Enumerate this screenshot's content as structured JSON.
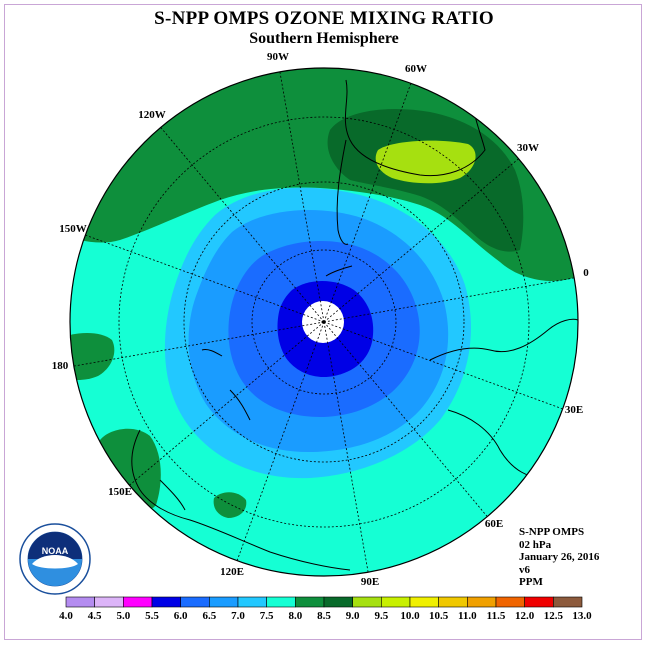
{
  "header": {
    "title": "S-NPP OMPS OZONE MIXING RATIO",
    "subtitle": "Southern Hemisphere"
  },
  "map": {
    "projection": "polar stereographic, South Pole centered",
    "longitude_labels": [
      "90W",
      "60W",
      "30W",
      "0",
      "30E",
      "60E",
      "90E",
      "120E",
      "150E",
      "180",
      "150W",
      "120W"
    ],
    "fill_colors": {
      "level_8_0_8_5": "#0e8f3c",
      "level_8_5_9_0": "#086a2a",
      "level_9_0_9_5": "#a6e010",
      "level_7_5_8_0": "#15ffd4",
      "level_7_0_7_5": "#22c8ff",
      "level_6_5_7_0": "#1a9cff",
      "level_6_0_6_5": "#1a6cff",
      "level_5_5_6_0": "#0000e6"
    }
  },
  "info": {
    "lines": [
      "S-NPP OMPS",
      "02 hPa",
      "January 26, 2016",
      "v6",
      "PPM"
    ]
  },
  "colorbar": {
    "ticks": [
      "4.0",
      "4.5",
      "5.0",
      "5.5",
      "6.0",
      "6.5",
      "7.0",
      "7.5",
      "8.0",
      "8.5",
      "9.0",
      "9.5",
      "10.0",
      "10.5",
      "11.0",
      "11.5",
      "12.0",
      "12.5",
      "13.0"
    ],
    "colors": [
      "#b48cf0",
      "#dcb4f8",
      "#ff00ff",
      "#0000e6",
      "#1a6cff",
      "#1a9cff",
      "#22c8ff",
      "#15ffd4",
      "#0e8f3c",
      "#086a2a",
      "#a6e010",
      "#c8f000",
      "#f0f000",
      "#f0c800",
      "#f0a000",
      "#f06400",
      "#f00000",
      "#8c5a3c"
    ]
  },
  "logo": {
    "text": "NOAA",
    "icon": "noaa-logo-icon"
  }
}
